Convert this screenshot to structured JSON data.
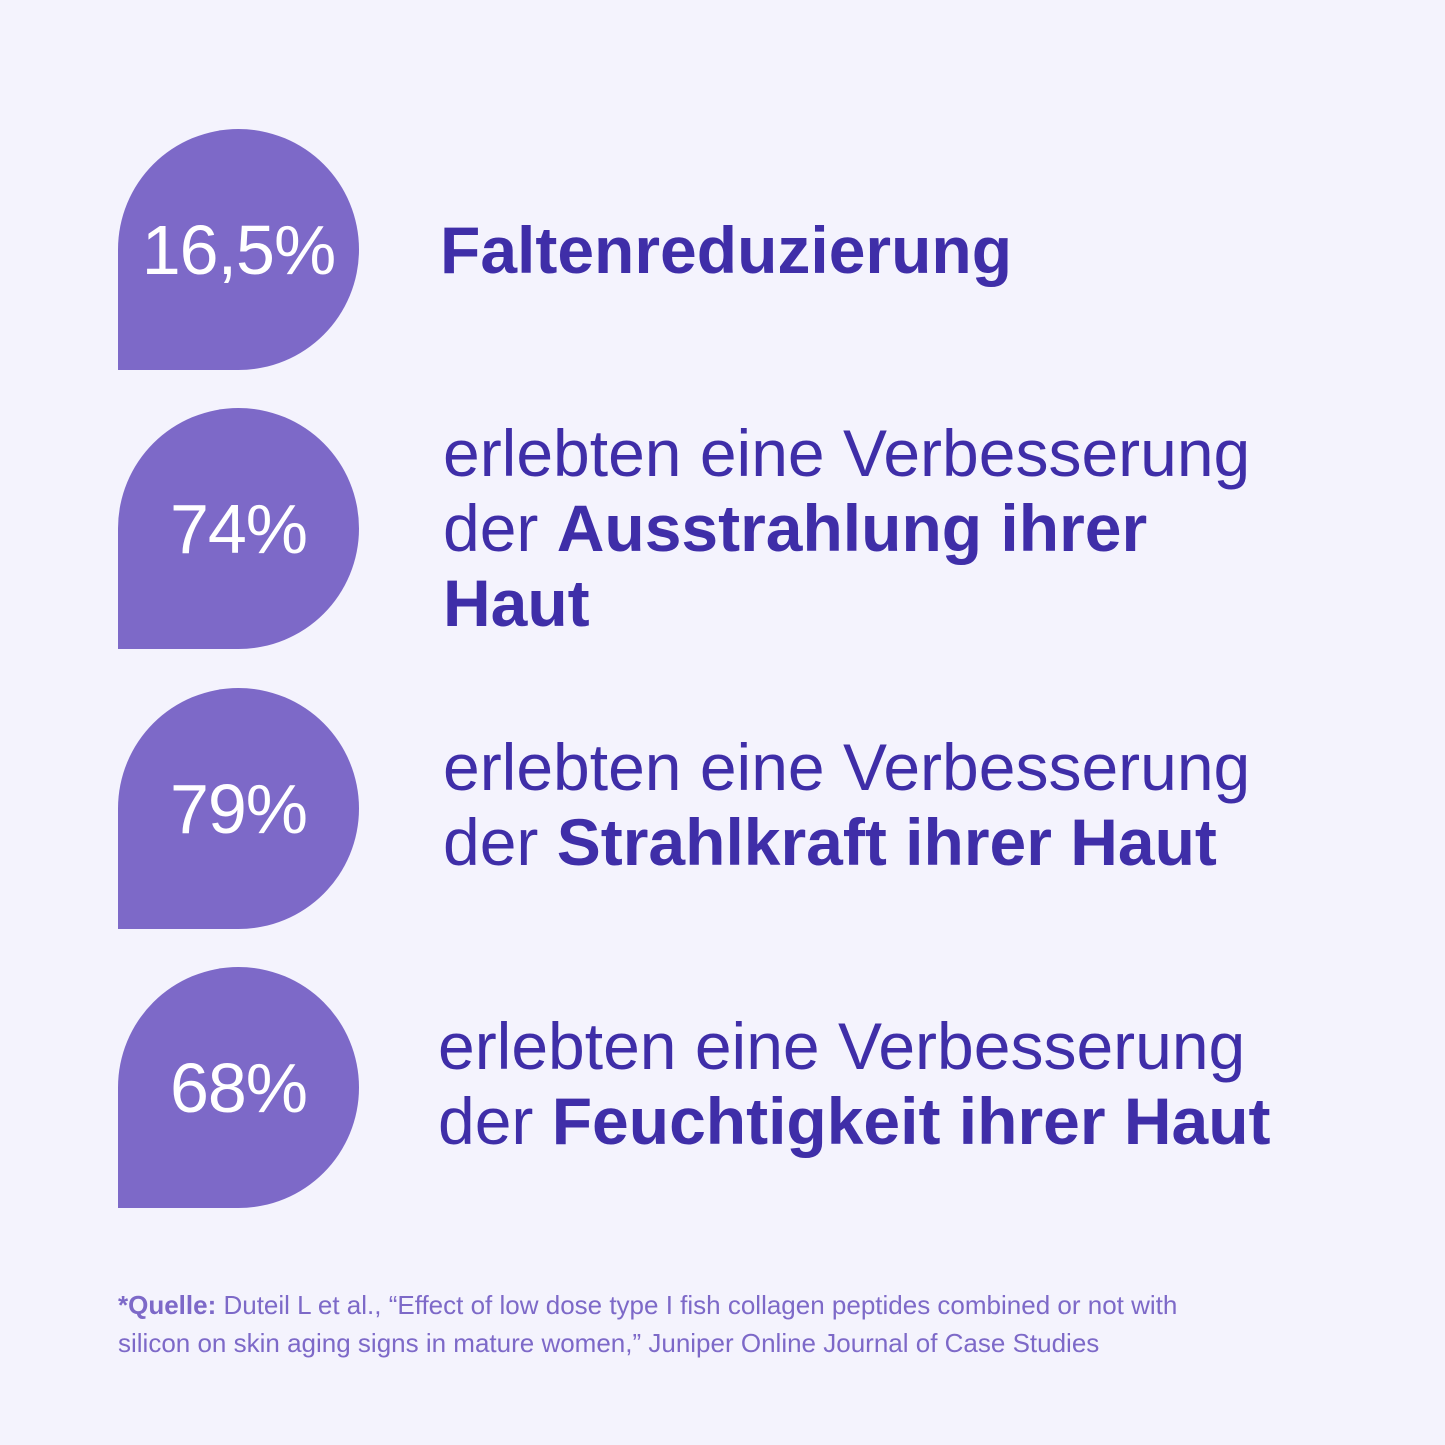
{
  "colors": {
    "background": "#f4f3fd",
    "drop": "#7d69c8",
    "text": "#3f2ea8",
    "source_text": "#7d69c8"
  },
  "stats": [
    {
      "value": "16,5%",
      "line1_regular": "",
      "line1_bold": "Faltenreduzierung",
      "line2_regular": "",
      "line2_bold": "",
      "line3_bold": ""
    },
    {
      "value": "74%",
      "line1_regular": "erlebten eine Verbesserung",
      "line1_bold": "",
      "line2_regular": "der ",
      "line2_bold": "Ausstrahlung ihrer",
      "line3_bold": "Haut"
    },
    {
      "value": "79%",
      "line1_regular": "erlebten eine Verbesserung",
      "line1_bold": "",
      "line2_regular": "der ",
      "line2_bold": "Strahlkraft ihrer Haut",
      "line3_bold": ""
    },
    {
      "value": "68%",
      "line1_regular": "erlebten eine Verbesserung",
      "line1_bold": "",
      "line2_regular": "der ",
      "line2_bold": "Feuchtigkeit ihrer Haut",
      "line3_bold": ""
    }
  ],
  "source": {
    "label": "*Quelle:",
    "text": " Duteil L et al., “Effect of low dose type I fish collagen peptides combined or not with silicon on skin aging signs in mature women,” Juniper Online Journal of Case Studies"
  }
}
